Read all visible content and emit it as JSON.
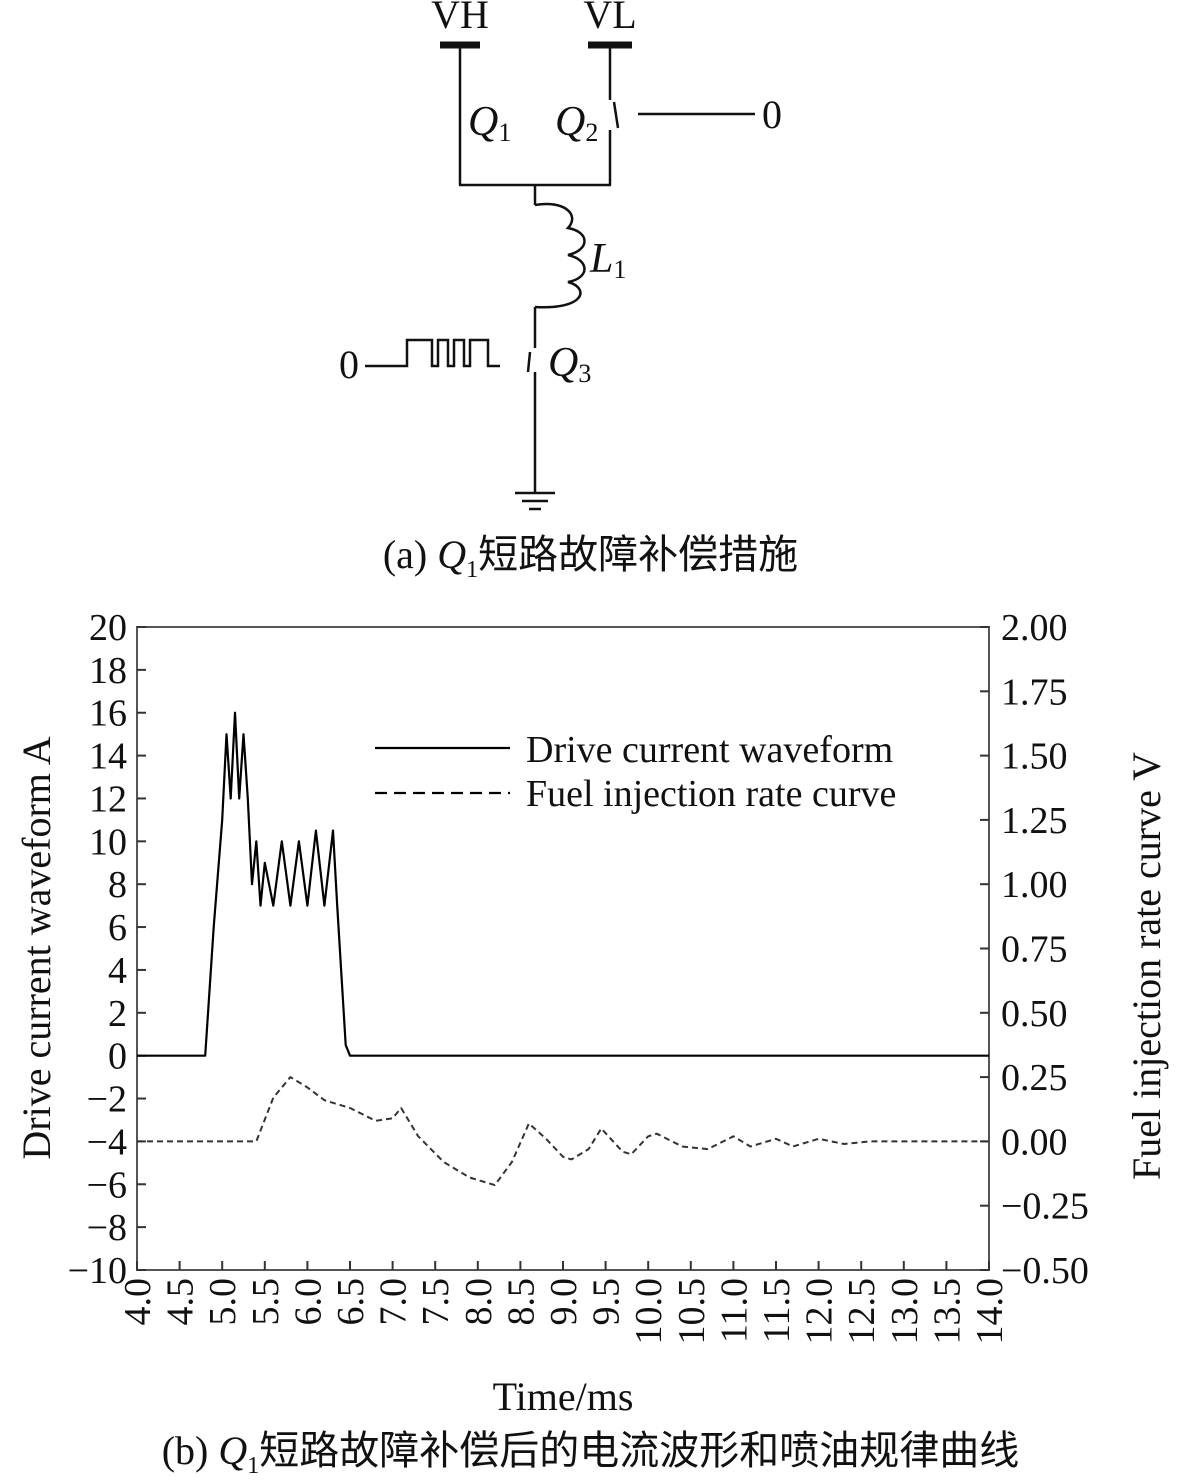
{
  "circuit": {
    "terminals": {
      "vh": "VH",
      "vl": "VL"
    },
    "switches": [
      {
        "letter": "Q",
        "sub": "1"
      },
      {
        "letter": "Q",
        "sub": "2"
      },
      {
        "letter": "Q",
        "sub": "3"
      }
    ],
    "inductor": {
      "letter": "L",
      "sub": "1"
    },
    "q2_gate_signal": "0",
    "q3_gate_signal": "0"
  },
  "caption_a": {
    "prefix": "(a) ",
    "q": "Q",
    "q_sub": "1",
    "text": "短路故障补偿措施"
  },
  "caption_b": {
    "prefix": "(b) ",
    "q": "Q",
    "q_sub": "1",
    "text": "短路故障补偿后的电流波形和喷油规律曲线"
  },
  "chart_data": {
    "type": "line",
    "xlabel": "Time/ms",
    "ylabel": "Drive current waveform A",
    "y2label": "Fuel injection rate curve V",
    "xlim": [
      4.0,
      14.0
    ],
    "ylim": [
      -10,
      20
    ],
    "y2lim": [
      -0.5,
      2.0
    ],
    "x_ticks": [
      "4.0",
      "4.5",
      "5.0",
      "5.5",
      "6.0",
      "6.5",
      "7.0",
      "7.5",
      "8.0",
      "8.5",
      "9.0",
      "9.5",
      "10.0",
      "10.5",
      "11.0",
      "11.5",
      "12.0",
      "12.5",
      "13.0",
      "13.5",
      "14.0"
    ],
    "y_ticks": [
      "20",
      "18",
      "16",
      "14",
      "12",
      "10",
      "8",
      "6",
      "4",
      "2",
      "0",
      "−2",
      "−4",
      "−6",
      "−8",
      "−10"
    ],
    "y2_ticks": [
      "2.00",
      "1.75",
      "1.50",
      "1.25",
      "1.00",
      "0.75",
      "0.50",
      "0.25",
      "0.00",
      "−0.25",
      "−0.50"
    ],
    "grid": false,
    "legend_position": "top-right",
    "series": [
      {
        "name": "Drive current waveform",
        "axis": "left",
        "style": "solid",
        "color": "#000000",
        "x": [
          4.0,
          4.5,
          4.8,
          4.9,
          5.0,
          5.05,
          5.1,
          5.15,
          5.2,
          5.25,
          5.3,
          5.35,
          5.4,
          5.45,
          5.5,
          5.6,
          5.7,
          5.8,
          5.9,
          6.0,
          6.1,
          6.2,
          6.3,
          6.35,
          6.45,
          6.5,
          7.0,
          8.0,
          9.0,
          10.0,
          11.0,
          12.0,
          13.0,
          14.0
        ],
        "y": [
          0,
          0,
          0,
          6,
          11,
          15,
          12,
          16,
          12,
          15,
          12,
          8,
          10,
          7,
          9,
          7,
          10,
          7,
          10,
          7,
          10.5,
          7,
          10.5,
          7,
          0.5,
          0,
          0,
          0,
          0,
          0,
          0,
          0,
          0,
          0
        ]
      },
      {
        "name": "Fuel injection rate curve",
        "axis": "right",
        "style": "dashed",
        "color": "#333333",
        "x": [
          4.0,
          5.0,
          5.4,
          5.6,
          5.8,
          6.0,
          6.2,
          6.5,
          6.8,
          7.0,
          7.1,
          7.3,
          7.6,
          7.9,
          8.2,
          8.4,
          8.6,
          8.8,
          9.0,
          9.1,
          9.3,
          9.45,
          9.7,
          9.8,
          10.0,
          10.1,
          10.4,
          10.7,
          11.0,
          11.2,
          11.5,
          11.7,
          12.0,
          12.3,
          12.6,
          13.0,
          13.5,
          14.0
        ],
        "y": [
          0.0,
          0.0,
          0.0,
          0.17,
          0.25,
          0.21,
          0.16,
          0.13,
          0.08,
          0.09,
          0.13,
          0.02,
          -0.08,
          -0.14,
          -0.17,
          -0.08,
          0.07,
          0.01,
          -0.06,
          -0.07,
          -0.03,
          0.05,
          -0.04,
          -0.05,
          0.02,
          0.03,
          -0.02,
          -0.03,
          0.02,
          -0.02,
          0.01,
          -0.02,
          0.01,
          -0.01,
          0.0,
          0.0,
          0.0,
          0.0
        ]
      }
    ]
  }
}
